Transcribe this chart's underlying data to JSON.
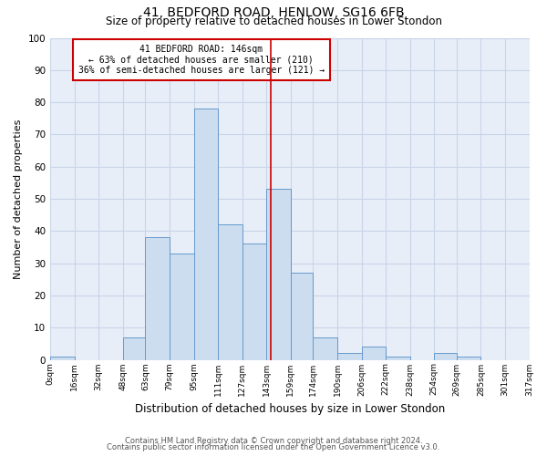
{
  "title": "41, BEDFORD ROAD, HENLOW, SG16 6FB",
  "subtitle": "Size of property relative to detached houses in Lower Stondon",
  "xlabel": "Distribution of detached houses by size in Lower Stondon",
  "ylabel": "Number of detached properties",
  "property_label": "41 BEDFORD ROAD: 146sqm",
  "pct_smaller": "63% of detached houses are smaller (210)",
  "pct_larger": "36% of semi-detached houses are larger (121)",
  "bin_edges": [
    0,
    16,
    32,
    48,
    63,
    79,
    95,
    111,
    127,
    143,
    159,
    174,
    190,
    206,
    222,
    238,
    254,
    269,
    285,
    301,
    317
  ],
  "bin_labels": [
    "0sqm",
    "16sqm",
    "32sqm",
    "48sqm",
    "63sqm",
    "79sqm",
    "95sqm",
    "111sqm",
    "127sqm",
    "143sqm",
    "159sqm",
    "174sqm",
    "190sqm",
    "206sqm",
    "222sqm",
    "238sqm",
    "254sqm",
    "269sqm",
    "285sqm",
    "301sqm",
    "317sqm"
  ],
  "bar_heights": [
    1,
    0,
    0,
    7,
    38,
    33,
    78,
    42,
    36,
    53,
    27,
    7,
    2,
    4,
    1,
    0,
    2,
    1,
    0,
    0
  ],
  "bar_color": "#ccddf0",
  "bar_edge_color": "#6699cc",
  "vline_x": 146,
  "vline_color": "#cc0000",
  "box_color": "#cc0000",
  "ylim": [
    0,
    100
  ],
  "yticks": [
    0,
    10,
    20,
    30,
    40,
    50,
    60,
    70,
    80,
    90,
    100
  ],
  "grid_color": "#c8d4e8",
  "bg_color": "#e8eef8",
  "footer1": "Contains HM Land Registry data © Crown copyright and database right 2024.",
  "footer2": "Contains public sector information licensed under the Open Government Licence v3.0."
}
